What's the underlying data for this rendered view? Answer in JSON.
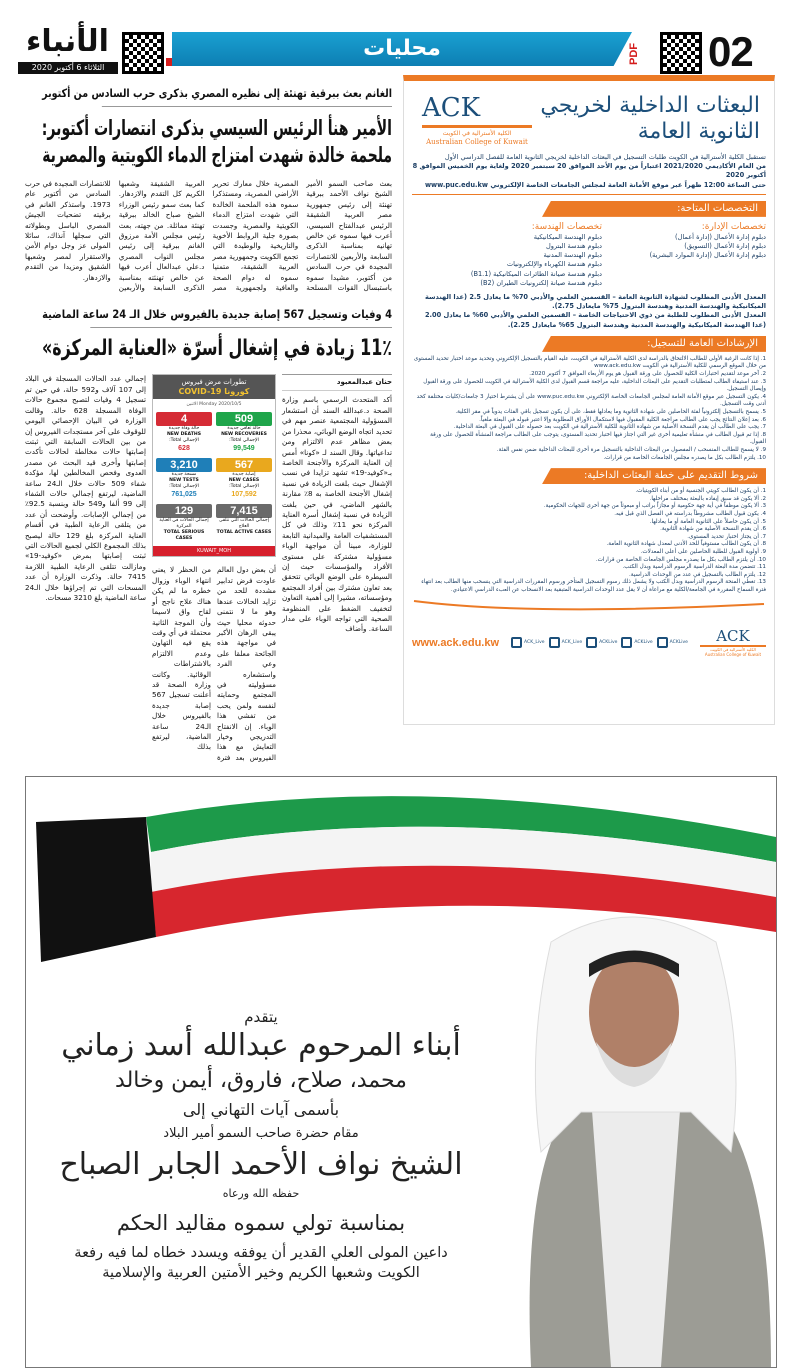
{
  "header": {
    "page_number": "02",
    "section": "محليات",
    "pdf_label": "PDF",
    "logo": "الأنباء",
    "date": "الثلاثاء 6 أكتوبر 2020"
  },
  "article1": {
    "kicker": "الغانم بعث ببرقية تهنئة إلى نظيره المصري بذكرى حرب السادس من أكتوبر",
    "headline1": "الأمير هنأ الرئيس السيسي بذكرى انتصارات أكتوبر:",
    "headline2": "ملحمة خالدة شهدت امتزاج الدماء الكويتية والمصرية",
    "body": "بعث صاحب السمو الأمير الشيخ نواف الأحمد ببرقية تهنئة إلى رئيس جمهورية مصر العربية الشقيقة الرئيس عبدالفتاح السيسي، أعرب فيها سموه عن خالص تهانيه بمناسبة الذكرى السابعة والأربعين للانتصارات المجيدة في حرب السادس من أكتوبر، مشيدا سموه باستبسال القوات المسلحة المصرية خلال معارك تحرير الأراضي المصرية، ومستذكرا سموه هذه الملحمة الخالدة التي شهدت امتزاج الدماء الكويتية والمصرية وجسدت بصورة جلية الروابط الأخوية والتاريخية والوطيدة التي تجمع الكويت وجمهورية مصر العربية الشقيقة، متمنيا سموه له دوام الصحة والعافية ولجمهورية مصر العربية الشقيقة وشعبها الكريم كل التقدم والازدهار. كما بعث سمو رئيس الوزراء الشيخ صباح الخالد ببرقية تهنئة مماثلة. من جهته، بعث رئيس مجلس الأمة مرزوق الغانم ببرقية إلى رئيس مجلس النواب المصري د.علي عبدالعال أعرب فيها عن خالص تهنئته بمناسبة الذكرى السابعة والأربعين للانتصارات المجيدة في حرب السادس من أكتوبر عام 1973. واستذكر الغانم في برقيته تضحيات الجيش المصري الباسل وبطولاته التي سجلها آنذاك، سائلا المولى عز وجل دوام الأمن والاستقرار لمصر وشعبها الشقيق ومزيدا من التقدم والازدهار."
  },
  "article2": {
    "kicker": "4 وفيات وتسجيل 567 إصابة جديدة بالفيروس خلال الـ 24 ساعة الماضية",
    "headline": "11٪ زيادة في إشغال أسرّة «العناية المركزة»",
    "byline": "حنان عبدالمعبود",
    "col_right": "أكد المتحدث الرسمي باسم وزارة الصحة د.عبدالله السند أن استشعار المسؤولية المجتمعية عنصر مهم في تحديد اتجاه الوضع الوبائي، محذرا من بعض مظاهر عدم الالتزام ومن تداعياتها. وقال السند لـ «كونا» أمس إن العناية المركزة والأجنحة الخاصة بـ«كوفيد-19» تشهد تزايدا في نسب الإشغال حيث بلغت الزيادة في نسبة إشغال الأجنحة الخاصة به 8٪ مقارنة بالشهر الماضي، في حين بلغت الزيادة في نسبة إشغال أسرة العناية المركزة نحو 11٪ وذلك في كل المستشفيات العامة والميدانية التابعة للوزارة، مبينا أن مواجهة الوباء مسؤولية مشتركة على مستوى الأفراد والمؤسسات حيث إن السيطرة على الوضع الوبائي تتحقق بعد تعاون مشترك بين أفراد المجتمع ومؤسساته، مشيرا إلى أهمية التعاون لتخفيف الضغط على المنظومة الصحية التي تواجه الوباء على مدار الساعة. وأضاف",
    "col_mid": "أن بعض دول العالم عاودت فرض تدابير مشددة للحد من تزايد الحالات عندها وهو ما لا نتمنى حدوثه محليا حيث يبقى الرهان الأكبر في مواجهة هذه الجائحة معلقا على وعي الفرد واستشعاره مسؤوليته في المجتمع وحمايته لنفسه ولمن يحب من تفشي هذا الوباء. إن الانفتاح التدريجي وخيار التعايش مع هذا الفيروس بعد فترة من الحظر لا يعني انتهاء الوباء وزوال خطره ما لم يكن هناك علاج ناجح أو لقاح واق لاسيما وأن الموجة الثانية محتملة في أي وقت يقع فيه التهاون وعدم الالتزام بالاشتراطات الوقائية. وكانت وزارة الصحة قد أعلنت تسجيل 567 إصابة جديدة بالفيروس خلال الـ24 ساعة الماضية، ليرتفع بذلك",
    "col_left": "إجمالي عدد الحالات المسجلة في البلاد إلى 107 آلاف و592 حالة، في حين تم تسجيل 4 وفيات لتصبح مجموع حالات الوفاة المسجلة 628 حالة. وقالت الوزارة في البيان الإحصائي اليومي للوقوف على آخر مستجدات الفيروس إن من بين الحالات السابقة التي ثبتت إصابتها حالات مخالطة لحالات تأكدت إصابتها وأخرى قيد البحث عن مصدر العدوى وفحص المخالطين لها، مؤكدة شفاء 509 حالات خلال الـ24 ساعة الماضية، ليرتفع إجمالي حالات الشفاء إلى 99 ألفا و549 حالة وبنسبة 92.5٪ من إجمالي الإصابات. وأوضحت أن عدد من يتلقى الرعاية الطبية في أقسام العناية المركزة بلغ 129 حالة ليصبح بذلك المجموع الكلي لجميع الحالات التي ثبتت إصابتها بمرض «كوفيد-19» ومازالت تتلقى الرعاية الطبية اللازمة 7415 حالة. وذكرت الوزارة أن عدد المسحات التي تم إجراؤها خلال الـ24 ساعة الماضية بلغ 3210 مسحات."
  },
  "covid": {
    "title_ar": "تطورات مرض فيروس",
    "title": "كورونا COVID-19",
    "date": "الاثنين Monday 2020/10/5",
    "stats": [
      {
        "ar": "حالة تعافي جديدة",
        "en": "NEW RECOVERIES",
        "total_label": "الإجمالي Total:",
        "value": "509",
        "total": "99,549",
        "color": "#1fa54a"
      },
      {
        "ar": "حالة وفاة جديدة",
        "en": "NEW DEATHS",
        "total_label": "الإجمالي Total:",
        "value": "4",
        "total": "628",
        "color": "#d52b35"
      },
      {
        "ar": "إصابة جديدة",
        "en": "NEW CASES",
        "total_label": "الإجمالي Total:",
        "value": "567",
        "total": "107,592",
        "color": "#e9a81e"
      },
      {
        "ar": "مسحة جديدة",
        "en": "NEW TESTS",
        "total_label": "الإجمالي Total:",
        "value": "3,210",
        "total": "761,025",
        "color": "#1f7fb8"
      },
      {
        "ar": "إجمالي الحالات التي تتلقى العلاج",
        "en": "TOTAL ACTIVE CASES",
        "total_label": "",
        "value": "7,415",
        "total": "",
        "color": "#6a6a6a"
      },
      {
        "ar": "إجمالي الحالات في العناية المركزة",
        "en": "TOTAL SERIOUS CASES",
        "total_label": "",
        "value": "129",
        "total": "",
        "color": "#6a6a6a"
      }
    ],
    "social": "KUWAIT_MOH"
  },
  "ack": {
    "title1": "البعثات الداخلية لخريجي",
    "title2": "الثانوية العامة",
    "logo": "ACK",
    "logo_ar": "الكلية الأسترالية في الكويت",
    "logo_en": "Australian College of Kuwait",
    "intro1": "تستقبل الكلية الأسترالية في الكويت طلبات التسجيل في البعثات الداخلية لخريجي الثانوية العامة للفصل الدراسي الأول",
    "intro2": "من العام الأكاديمي 2021/2020 اعتباراً من يوم الأحد الموافق 20 سبتمبر 2020 ولغاية يوم الخميس الموافق 8 أكتوبر 2020",
    "intro3": "حتى الساعة 12:00 ظهراً عبر موقع الأمانة العامة لمجلس الجامعات الخاصة الإلكتروني www.puc.edu.kw",
    "sec_specs": "التخصصات المتاحة:",
    "admin_title": "تخصصات الإدارة:",
    "admin": [
      "دبلوم إدارة الأعمال (إدارة أعمال)",
      "دبلوم إدارة الأعمال (التسويق)",
      "دبلوم إدارة الأعمال (إدارة الموارد البشرية)"
    ],
    "eng_title": "تخصصات الهندسة:",
    "eng": [
      "دبلوم الهندسة الميكانيكية",
      "دبلوم هندسة البترول",
      "دبلوم الهندسة المدنية",
      "دبلوم هندسة الكهرباء والإلكترونيات",
      "دبلوم هندسة صيانة الطائرات الميكانيكية (B1.1)",
      "دبلوم هندسة صيانة إلكترونيات الطيران (B2)"
    ],
    "req": [
      "المعدل الأدنى المطلوب لشهادة الثانوية العامة – القسمين العلمي والأدبي 70% ما يعادل 2.5 (عدا الهندسة الميكانيكية والهندسة المدنية وهندسة البترول 75% مايعادل 2.75).",
      "المعدل الأدنى المطلوب للطلبة من ذوي الاحتياجات الخاصة – القسمين العلمي والأدبي 60% ما يعادل 2.00 (عدا الهندسة الميكانيكية والهندسة المدنية وهندسة البترول 65% مايعادل 2.25)."
    ],
    "sec_guide": "الإرشادات العامة للتسجيل:",
    "guide": [
      "1. إذا كانت الرغبة الأولى للطالب الالتحاق بالدراسة لدى الكلية الأسترالية في الكويت، عليه القيام بالتسجيل الإلكتروني وتحديد موعد اختبار تحديد المستوى من خلال الموقع الرسمي للكلية الأسترالية في الكويت www.ack.edu.kw",
      "2. آخر موعد لتقديم اختبارات الكلية للحصول على ورقة القبول هو يوم الأربعاء الموافق 7 أكتوبر 2020.",
      "3. عند استيفاء الطالب لمتطلبات التقديم على البعثات الداخلية، عليه مراجعة قسم القبول لدى الكلية الأسترالية في الكويت للحصول على ورقة القبول وإيصال التسجيل.",
      "4. يكون التسجيل عبر موقع الأمانة العامة لمجلس الجامعات الخاصة الإلكتروني www.puc.edu.kw على أن يشترط اختيار 3 جامعات/كليات مختلفة كحد أدنى وقت التسجيل.",
      "5. يسمح بالتسجيل إلكترونياً لفئة الحاصلين على شهادة الثانوية وما يعادلها فقط، على أن يكون تسجيل باقي الفئات يدوياً في مقر الكلية.",
      "6. بعد إعلان النتائج يجب على الطالب مراجعة الكلية المقبول فيها لاستكمال الأوراق المطلوبة وإلا اعتبر قبوله في البعثة ملغياً.",
      "7. يجب على الطالب أن يقدم النسخة الأصلية من شهادة الثانوية للكلية الأسترالية في الكويت بعد حصوله على القبول في البعثة الداخلية.",
      "8. إذا تم قبول الطالب في منشأة تعليمية أخرى غير التي اجتاز فيها اختبار تحديد المستوى، يتوجب على الطالب مراجعة المنشأة للحصول على ورقة القبول.",
      "9. لا يسمح للطالب المنسحب / المفصول من البعثات الداخلية بالتسجيل مرة أخرى للبعثات الداخلية ضمن نفس الفئة.",
      "10. يلتزم الطالب بكل ما يصدره مجلس الجامعات الخاصة من قرارات."
    ],
    "sec_terms": "شروط التقديم على خطة البعثات الداخلية:",
    "terms": [
      "1. أن يكون الطالب كويتي الجنسية أو من أبناء الكويتيات.",
      "2. ألا يكون قد سبق إيفاده بالبعثة بمختلف مراحلها.",
      "3. ألا يكون موظفاً في أية جهة حكومية أو مجازاً براتب أو مبعوثاً من جهة أخرى للجهات الحكومية.",
      "4. يكون قبول الطالب مشروطاً بدراسته في الفصل الذي قبل فيه.",
      "5. أن يكون حاصلاً على الثانوية العامة أو ما يعادلها.",
      "6. أن يقدم النسخة الأصلية من شهادة الثانوية.",
      "7. أن يجتاز اختبار تحديد المستوى.",
      "8. أن يكون الطالب مستوفياً للحد الأدنى لمعدل شهادة الثانوية العامة.",
      "9. أولوية القبول للطلبة الحاصلين على أعلى المعدلات.",
      "10. أن يلتزم الطالب بكل ما يصدره مجلس الجامعات الخاصة من قرارات.",
      "11. تتضمن مدة البعثة الدراسية الرسوم الدراسية وبدل الكتب.",
      "12. يلتزم الطالب بالتسجيل في عدد من الوحدات الدراسية.",
      "13. تغطي المنحة الرسوم الدراسية وبدل الكتب ولا يشمل ذلك رسوم التسجيل المتأخر ورسوم المقررات الدراسية التي ينسحب منها الطالب بعد انتهاء فترة السماح المقررة في الجامعة/الكلية مع مراعاة أن لا يقل عدد الوحدات الدراسية المتبقية بعد الانسحاب عن العبء الدراسي الاعتيادي."
    ],
    "website": "www.ack.edu.kw",
    "social": [
      {
        "icon": "instagram-icon",
        "handle": "ACK_Live"
      },
      {
        "icon": "twitter-icon",
        "handle": "ACK_Live"
      },
      {
        "icon": "snapchat-icon",
        "handle": "ACKLive"
      },
      {
        "icon": "facebook-icon",
        "handle": "ACKLive"
      },
      {
        "icon": "youtube-icon",
        "handle": "ACKLive"
      }
    ],
    "accent": "#ec7a25",
    "navy": "#1c4f7a"
  },
  "ad": {
    "l1": "يتقدم",
    "l2": "أبناء المرحوم عبدالله أسد زماني",
    "l3": "محمد، صلاح، فاروق، أيمن وخالد",
    "l4": "بأسمى آيات التهاني إلى",
    "l5": "مقام حضرة صاحب السمو أمير البلاد",
    "l6": "الشيخ نواف الأحمد الجابر الصباح",
    "l7": "حفظه الله ورعاه",
    "l8": "بمناسبة تولي سموه مقاليد الحكم",
    "l9": "داعين المولى العلي القدير أن يوفقه ويسدد خطاه لما فيه رفعة",
    "l10": "الكويت وشعبها الكريم وخير الأمتين العربية والإسلامية",
    "flag_colors": {
      "green": "#1d9a4a",
      "white": "#ffffff",
      "red": "#d7262e",
      "black": "#111111"
    }
  }
}
